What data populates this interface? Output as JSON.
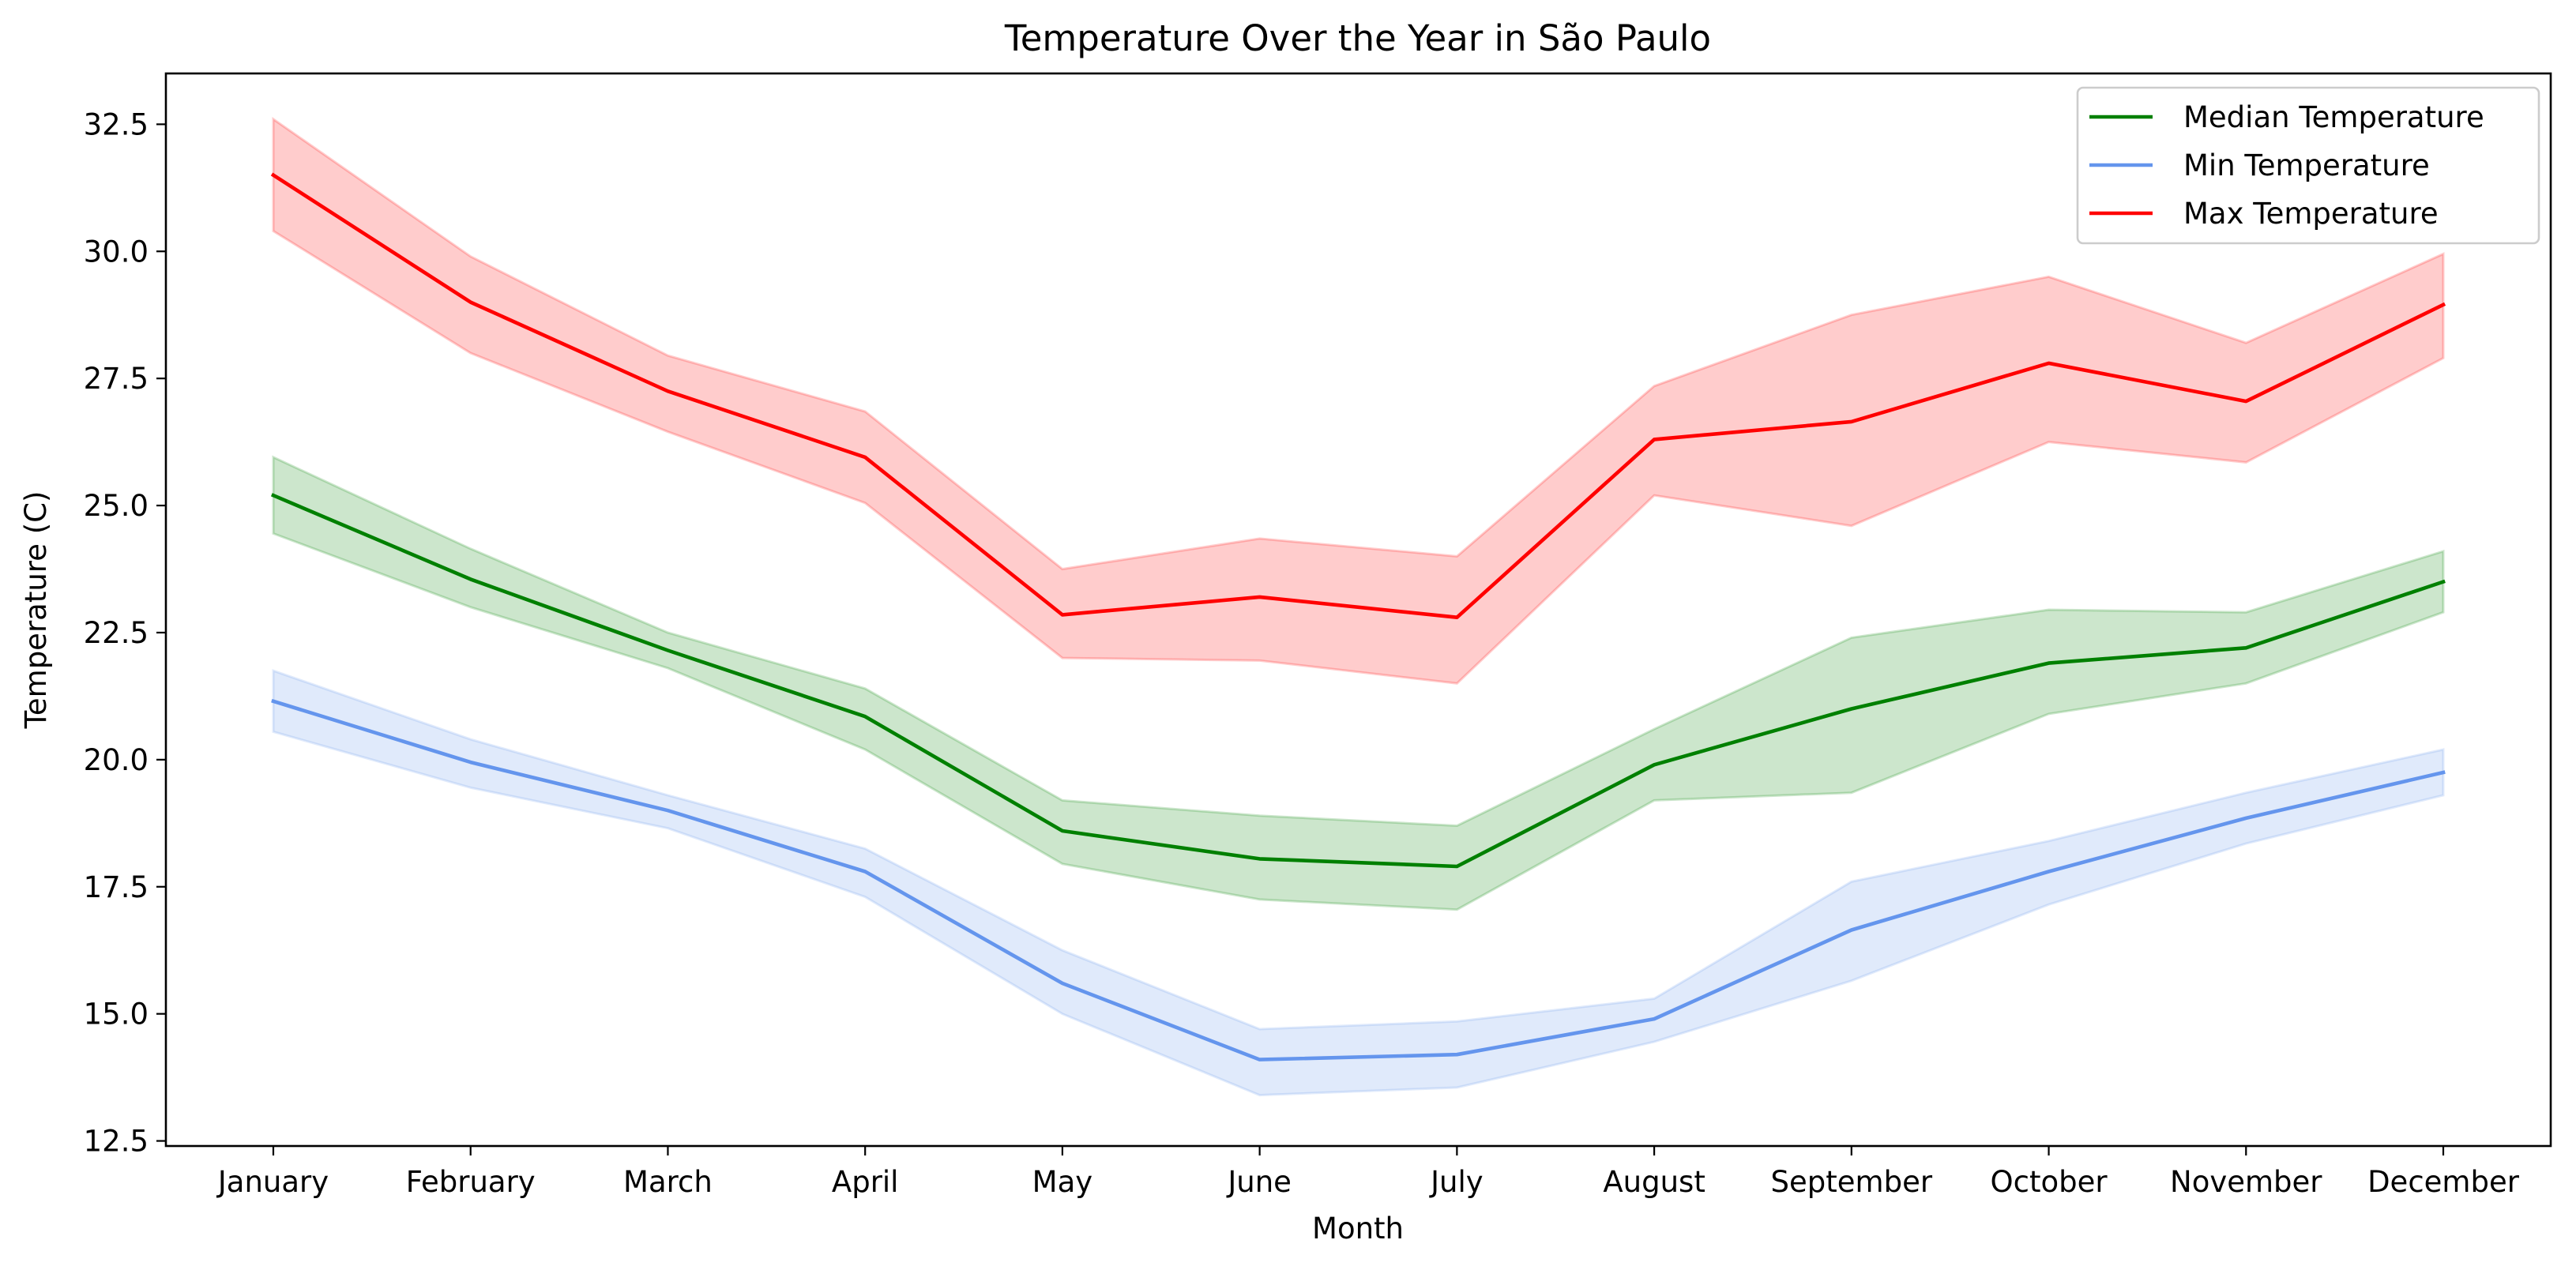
{
  "chart_data": {
    "type": "line",
    "title": "Temperature Over the Year in São Paulo",
    "xlabel": "Month",
    "ylabel": "Temperature (C)",
    "categories": [
      "January",
      "February",
      "March",
      "April",
      "May",
      "June",
      "July",
      "August",
      "September",
      "October",
      "November",
      "December"
    ],
    "ylim": [
      12.4,
      33.5
    ],
    "yticks": [
      12.5,
      15.0,
      17.5,
      20.0,
      22.5,
      25.0,
      27.5,
      30.0,
      32.5
    ],
    "ytick_labels": [
      "12.5",
      "15.0",
      "17.5",
      "20.0",
      "22.5",
      "25.0",
      "27.5",
      "30.0",
      "32.5"
    ],
    "grid": false,
    "legend_position": "top-right",
    "series": [
      {
        "name": "Median Temperature",
        "color": "#008000",
        "band_color": "#008000",
        "values": [
          25.2,
          23.55,
          22.15,
          20.85,
          18.6,
          18.05,
          17.9,
          19.9,
          21.0,
          21.9,
          22.2,
          23.5
        ],
        "band_low": [
          24.45,
          23.0,
          21.8,
          20.2,
          17.95,
          17.25,
          17.05,
          19.2,
          19.35,
          20.9,
          21.5,
          22.9
        ],
        "band_high": [
          25.95,
          24.15,
          22.5,
          21.4,
          19.2,
          18.9,
          18.7,
          20.6,
          22.4,
          22.95,
          22.9,
          24.1
        ]
      },
      {
        "name": "Min Temperature",
        "color": "#6495ED",
        "band_color": "#6495ED",
        "values": [
          21.15,
          19.95,
          19.0,
          17.8,
          15.6,
          14.1,
          14.2,
          14.9,
          16.65,
          17.8,
          18.85,
          19.75
        ],
        "band_low": [
          20.55,
          19.45,
          18.65,
          17.3,
          15.0,
          13.4,
          13.55,
          14.45,
          15.65,
          17.15,
          18.35,
          19.3
        ],
        "band_high": [
          21.75,
          20.4,
          19.3,
          18.25,
          16.25,
          14.7,
          14.85,
          15.3,
          17.6,
          18.4,
          19.35,
          20.2
        ]
      },
      {
        "name": "Max Temperature",
        "color": "#FF0000",
        "band_color": "#FF0000",
        "values": [
          31.5,
          29.0,
          27.25,
          25.95,
          22.85,
          23.2,
          22.8,
          26.3,
          26.65,
          27.8,
          27.05,
          28.95
        ],
        "band_low": [
          30.4,
          28.0,
          26.45,
          25.05,
          22.0,
          21.95,
          21.5,
          25.2,
          24.6,
          26.25,
          25.85,
          27.9
        ],
        "band_high": [
          32.6,
          29.9,
          27.95,
          26.85,
          23.75,
          24.35,
          24.0,
          27.35,
          28.75,
          29.5,
          28.2,
          29.95
        ]
      }
    ]
  }
}
